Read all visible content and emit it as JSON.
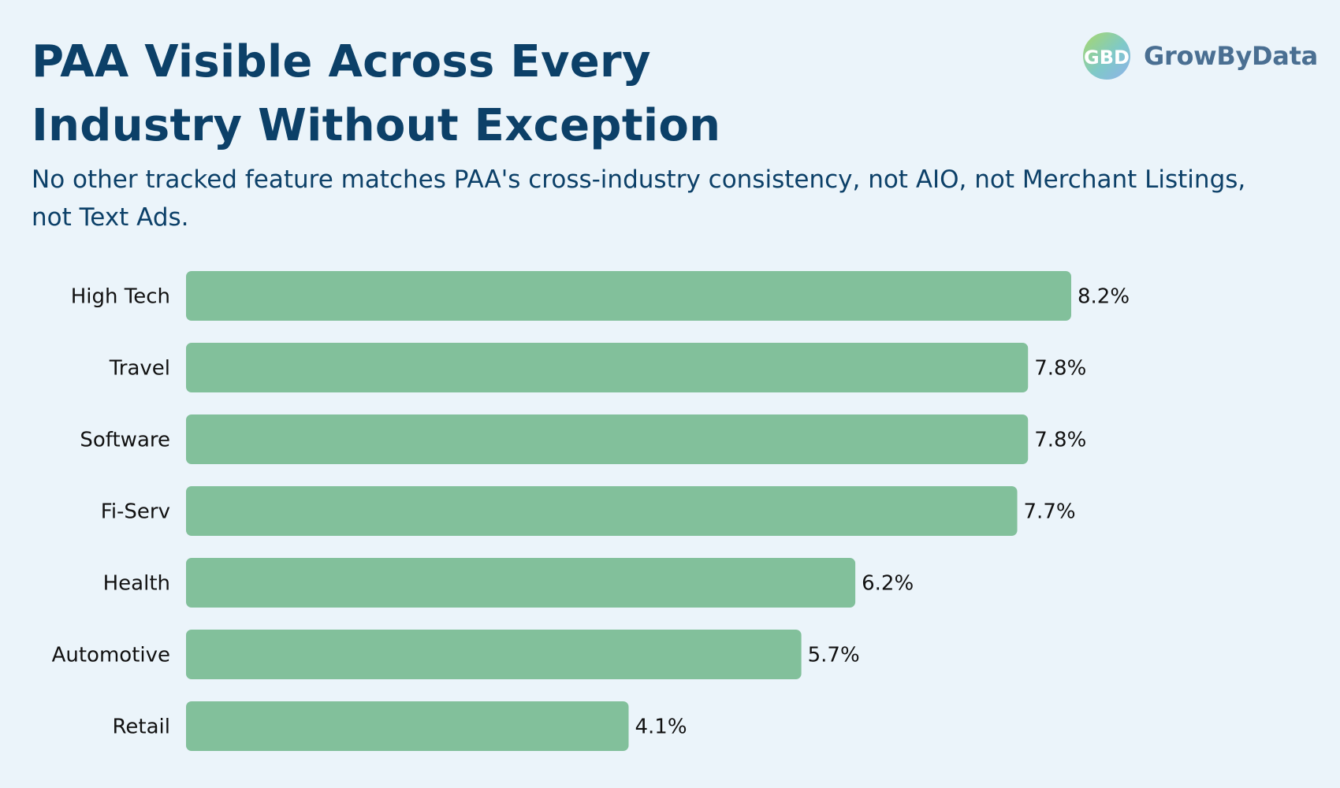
{
  "header": {
    "title": "PAA Visible Across Every Industry Without Exception",
    "subtitle": "No other tracked feature matches PAA's cross-industry consistency, not AIO, not Merchant Listings, not Text Ads."
  },
  "logo": {
    "text": "GrowByData",
    "mark_text": "GBD",
    "icon": "growbydata-logo-icon"
  },
  "colors": {
    "background": "#ebf4fa",
    "title": "#0c4068",
    "bar": "#82c09b",
    "label": "#111111"
  },
  "chart_data": {
    "type": "bar",
    "orientation": "horizontal",
    "categories": [
      "High Tech",
      "Travel",
      "Software",
      "Fi-Serv",
      "Health",
      "Automotive",
      "Retail"
    ],
    "values": [
      8.2,
      7.8,
      7.8,
      7.7,
      6.2,
      5.7,
      4.1
    ],
    "value_labels": [
      "8.2%",
      "7.8%",
      "7.8%",
      "7.7%",
      "6.2%",
      "5.7%",
      "4.1%"
    ],
    "unit": "%",
    "xlim": [
      0,
      8.2
    ],
    "grid": false,
    "legend": "none",
    "xlabel": "",
    "ylabel": ""
  }
}
